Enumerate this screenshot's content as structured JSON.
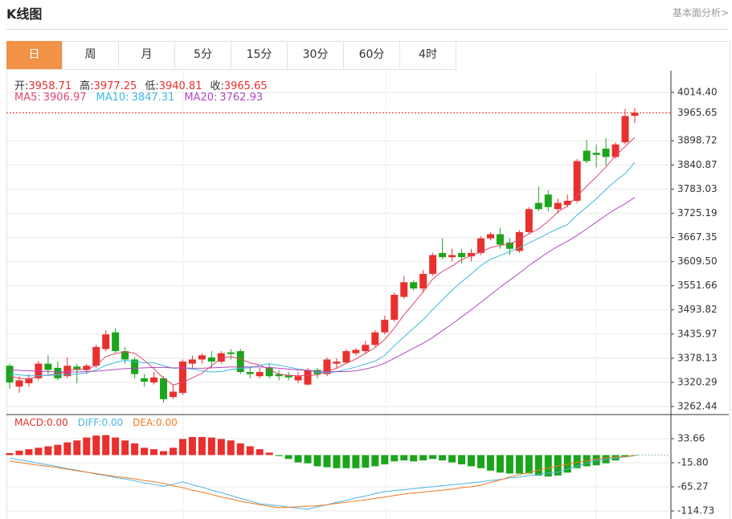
{
  "header": {
    "title": "K线图",
    "link": "基本面分析>"
  },
  "tabs": [
    "日",
    "周",
    "月",
    "5分",
    "15分",
    "30分",
    "60分",
    "4时"
  ],
  "chart_data": [
    {
      "type": "candlestick",
      "up_color": "#e8302e",
      "down_color": "#1ca51c",
      "info_labels": [
        "开:",
        "高:",
        "低:",
        "收:"
      ],
      "info_values": [
        3958.71,
        3977.25,
        3940.81,
        3965.65
      ],
      "ylim": [
        3243.12,
        4066.57
      ],
      "yticks": [
        {
          "value": 4014.4,
          "label": "4014.40"
        },
        3898.72,
        3840.87,
        3783.03,
        3725.19,
        3667.35,
        {
          "value": 3609.5,
          "label": "3609.50"
        },
        3551.66,
        3493.82,
        3435.97,
        3378.13,
        3320.29,
        3262.44
      ],
      "open": [
        3360,
        3310,
        3318,
        3330,
        3365,
        3355,
        3335,
        3358,
        3350,
        3360,
        3400,
        3440,
        3395,
        3375,
        3330,
        3320,
        3330,
        3285,
        3295,
        3365,
        3375,
        3380,
        3370,
        3392,
        3395,
        3345,
        3335,
        3355,
        3340,
        3338,
        3325,
        3315,
        3350,
        3340,
        3365,
        3368,
        3390,
        3395,
        3410,
        3440,
        3470,
        3525,
        3560,
        3545,
        3580,
        3630,
        3620,
        3630,
        3622,
        3630,
        3665,
        3675,
        3655,
        3635,
        3680,
        3750,
        3770,
        3735,
        3745,
        3755,
        3875,
        3870,
        3880,
        3860,
        3895,
        3958.71
      ],
      "high": [
        3365,
        3335,
        3340,
        3372,
        3385,
        3370,
        3380,
        3365,
        3365,
        3410,
        3445,
        3450,
        3405,
        3380,
        3340,
        3345,
        3335,
        3315,
        3375,
        3385,
        3390,
        3395,
        3395,
        3400,
        3400,
        3355,
        3355,
        3365,
        3350,
        3345,
        3345,
        3355,
        3355,
        3380,
        3378,
        3400,
        3402,
        3420,
        3445,
        3480,
        3535,
        3575,
        3565,
        3590,
        3630,
        3665,
        3640,
        3640,
        3640,
        3670,
        3680,
        3690,
        3665,
        3685,
        3740,
        3790,
        3780,
        3760,
        3770,
        3855,
        3900,
        3890,
        3905,
        3895,
        3975,
        3977.25
      ],
      "low": [
        3305,
        3295,
        3310,
        3325,
        3340,
        3325,
        3330,
        3318,
        3340,
        3355,
        3395,
        3390,
        3365,
        3330,
        3310,
        3315,
        3272,
        3280,
        3290,
        3355,
        3365,
        3355,
        3365,
        3375,
        3340,
        3330,
        3330,
        3330,
        3325,
        3325,
        3318,
        3312,
        3330,
        3335,
        3355,
        3365,
        3385,
        3388,
        3405,
        3435,
        3465,
        3520,
        3540,
        3535,
        3575,
        3615,
        3610,
        3605,
        3610,
        3625,
        3660,
        3640,
        3625,
        3630,
        3675,
        3730,
        3730,
        3725,
        3740,
        3750,
        3845,
        3835,
        3840,
        3855,
        3890,
        3940.81
      ],
      "close": [
        3320,
        3325,
        3330,
        3365,
        3350,
        3330,
        3360,
        3350,
        3360,
        3405,
        3435,
        3395,
        3375,
        3340,
        3322,
        3332,
        3280,
        3298,
        3370,
        3375,
        3385,
        3370,
        3390,
        3388,
        3345,
        3340,
        3345,
        3335,
        3335,
        3332,
        3335,
        3350,
        3340,
        3375,
        3370,
        3395,
        3398,
        3410,
        3440,
        3470,
        3530,
        3560,
        3545,
        3580,
        3625,
        3620,
        3625,
        3620,
        3630,
        3665,
        3675,
        3650,
        3640,
        3680,
        3735,
        3735,
        3740,
        3750,
        3755,
        3850,
        3850,
        3865,
        3860,
        3890,
        3958,
        3965.65
      ],
      "series": [
        {
          "name": "MA5:",
          "last": 3906.97,
          "color": "#e0466e",
          "values": [
            3335,
            3330,
            3328,
            3335,
            3338,
            3340,
            3347,
            3353,
            3350,
            3361,
            3382,
            3389,
            3394,
            3390,
            3373,
            3353,
            3330,
            3314,
            3320,
            3331,
            3342,
            3360,
            3378,
            3382,
            3376,
            3367,
            3362,
            3351,
            3340,
            3337,
            3336,
            3337,
            3338,
            3346,
            3354,
            3366,
            3376,
            3390,
            3403,
            3423,
            3450,
            3482,
            3509,
            3537,
            3568,
            3586,
            3599,
            3614,
            3624,
            3632,
            3643,
            3648,
            3652,
            3662,
            3676,
            3688,
            3706,
            3728,
            3743,
            3766,
            3790,
            3812,
            3836,
            3863,
            3885,
            3906.97
          ]
        },
        {
          "name": "MA10:",
          "last": 3847.31,
          "color": "#3bb9dc",
          "values": [
            3340,
            3338,
            3336,
            3336,
            3337,
            3338,
            3339,
            3340,
            3343,
            3350,
            3361,
            3368,
            3373,
            3370,
            3367,
            3367,
            3360,
            3354,
            3355,
            3352,
            3348,
            3345,
            3346,
            3351,
            3354,
            3355,
            3361,
            3365,
            3361,
            3357,
            3352,
            3349,
            3345,
            3343,
            3346,
            3351,
            3357,
            3364,
            3371,
            3385,
            3408,
            3429,
            3450,
            3470,
            3495,
            3518,
            3541,
            3561,
            3580,
            3600,
            3615,
            3624,
            3633,
            3643,
            3654,
            3665,
            3677,
            3688,
            3698,
            3721,
            3740,
            3760,
            3782,
            3803,
            3820,
            3847.31
          ]
        },
        {
          "name": "MA20:",
          "last": 3762.93,
          "color": "#b048c0",
          "values": [
            3350,
            3349,
            3348,
            3347,
            3346,
            3345,
            3345,
            3345,
            3346,
            3347,
            3349,
            3351,
            3353,
            3354,
            3355,
            3356,
            3356,
            3355,
            3355,
            3354,
            3354,
            3355,
            3356,
            3357,
            3357,
            3357,
            3357,
            3356,
            3354,
            3352,
            3350,
            3349,
            3347,
            3346,
            3346,
            3346,
            3348,
            3352,
            3358,
            3366,
            3378,
            3390,
            3402,
            3414,
            3428,
            3444,
            3460,
            3477,
            3494,
            3512,
            3530,
            3548,
            3565,
            3582,
            3600,
            3616,
            3632,
            3646,
            3658,
            3672,
            3688,
            3704,
            3720,
            3735,
            3748,
            3762.93
          ]
        }
      ]
    },
    {
      "type": "macd",
      "ylim": [
        -131.2,
        83.12
      ],
      "yticks": [
        33.66,
        {
          "value": -15.8,
          "label": "-15.80"
        },
        -65.27,
        -114.73
      ],
      "series": [
        {
          "name": "MACD:",
          "legend_value": "0.00",
          "color": "#e8302e",
          "down_color": "#1ca51c",
          "values": [
            4,
            9,
            12,
            15,
            18,
            21,
            26,
            30,
            36,
            40,
            41,
            36,
            30,
            24,
            15,
            12,
            8,
            15,
            33,
            37,
            37,
            36,
            33,
            30,
            24,
            18,
            12,
            5,
            -2,
            -8,
            -15,
            -17,
            -23,
            -25,
            -27,
            -27,
            -27,
            -26,
            -23,
            -19,
            -13,
            -11,
            -13,
            -11,
            -8,
            -11,
            -15,
            -19,
            -23,
            -27,
            -32,
            -36,
            -38,
            -38,
            -38,
            -42,
            -44,
            -42,
            -36,
            -27,
            -23,
            -21,
            -17,
            -11,
            -4,
            -1
          ]
        },
        {
          "name": "DIFF:",
          "legend_value": "0.00",
          "color": "#4cb4e6",
          "values": [
            -6,
            -10,
            -13,
            -17,
            -20,
            -24,
            -28,
            -31,
            -35,
            -39,
            -42,
            -46,
            -49,
            -53,
            -57,
            -60,
            -64,
            -60,
            -55,
            -61,
            -66,
            -72,
            -77,
            -83,
            -89,
            -94,
            -100,
            -102,
            -104,
            -107,
            -109,
            -111,
            -106,
            -102,
            -97,
            -93,
            -88,
            -84,
            -79,
            -75,
            -73,
            -71,
            -69,
            -67,
            -65,
            -63,
            -61,
            -59,
            -57,
            -55,
            -52,
            -50,
            -47,
            -45,
            -42,
            -40,
            -37,
            -35,
            -29,
            -23,
            -17,
            -11,
            -9,
            -6,
            -4,
            -1
          ]
        },
        {
          "name": "DEA:",
          "legend_value": "0.00",
          "color": "#f07a22",
          "values": [
            -12,
            -15,
            -18,
            -21,
            -23,
            -26,
            -29,
            -32,
            -35,
            -38,
            -41,
            -44,
            -46,
            -49,
            -52,
            -55,
            -58,
            -63,
            -67,
            -72,
            -76,
            -81,
            -86,
            -90,
            -95,
            -98,
            -102,
            -105,
            -108,
            -107,
            -106,
            -105,
            -104,
            -102,
            -99,
            -97,
            -94,
            -92,
            -89,
            -86,
            -83,
            -80,
            -78,
            -76,
            -74,
            -72,
            -70,
            -67,
            -65,
            -62,
            -56,
            -51,
            -45,
            -40,
            -36,
            -31,
            -27,
            -22,
            -19,
            -15,
            -12,
            -8,
            -6,
            -4,
            -3,
            -1
          ]
        }
      ]
    }
  ]
}
